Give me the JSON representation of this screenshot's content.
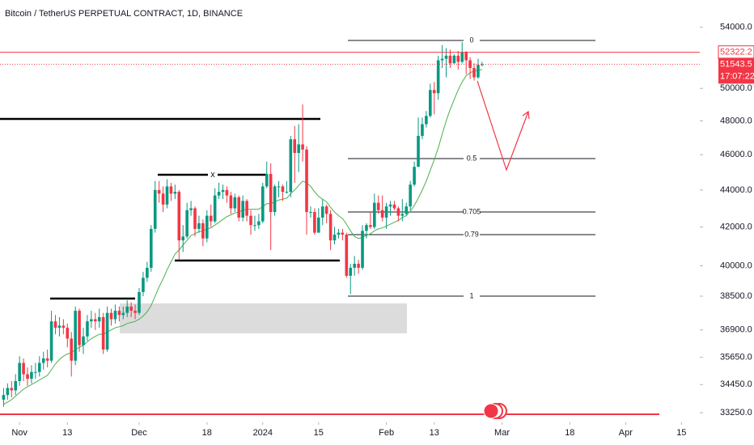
{
  "chart_data": {
    "type": "candlestick",
    "title": "Bitcoin / TetherUS PERPETUAL CONTRACT, 1D, BINANCE",
    "x": [
      0,
      1,
      2,
      3,
      4,
      5,
      6,
      7,
      8,
      9,
      10,
      11,
      12,
      13,
      14,
      15,
      16,
      17,
      18,
      19,
      20,
      21,
      22,
      23,
      24,
      25,
      26,
      27,
      28,
      29,
      30,
      31,
      32,
      33,
      34,
      35,
      36,
      37,
      38,
      39,
      40,
      41,
      42,
      43,
      44,
      45,
      46,
      47,
      48,
      49,
      50,
      51,
      52,
      53,
      54,
      55,
      56,
      57,
      58,
      59,
      60,
      61,
      62,
      63,
      64,
      65,
      66,
      67,
      68,
      69,
      70,
      71,
      72,
      73,
      74,
      75,
      76,
      77,
      78,
      79,
      80,
      81,
      82,
      83,
      84,
      85,
      86,
      87,
      88,
      89,
      90,
      91,
      92,
      93,
      94,
      95,
      96,
      97,
      98,
      99,
      100,
      101,
      102,
      103,
      104,
      105,
      106,
      107,
      108,
      109,
      110,
      111,
      112,
      113,
      114,
      115,
      116,
      117,
      118,
      119,
      120
    ],
    "open": [
      33800,
      34000,
      34300,
      34200,
      34600,
      35400,
      34900,
      34700,
      35000,
      35000,
      35400,
      35600,
      35500,
      37300,
      37000,
      37100,
      37000,
      36500,
      35500,
      37800,
      36200,
      36600,
      37300,
      37400,
      37300,
      37500,
      36000,
      37700,
      37400,
      37800,
      37600,
      37700,
      38000,
      37800,
      37700,
      38700,
      39400,
      39900,
      41900,
      44000,
      43800,
      43200,
      44200,
      43800,
      43900,
      41300,
      41500,
      42900,
      43000,
      41900,
      42200,
      41400,
      42600,
      42300,
      43700,
      43900,
      44000,
      43700,
      43000,
      43600,
      42500,
      43400,
      42600,
      42100,
      42100,
      42300,
      44200,
      44900,
      42800,
      44200,
      44200,
      43900,
      43900,
      46900,
      46100,
      46600,
      46300,
      42800,
      42800,
      41700,
      42500,
      43100,
      42700,
      41300,
      41600,
      41700,
      41600,
      39500,
      39900,
      40100,
      39900,
      41800,
      42100,
      42000,
      43300,
      42900,
      42500,
      43100,
      43200,
      43000,
      42600,
      42700,
      43100,
      44300,
      45300,
      47100,
      47800,
      48300,
      49900,
      49700,
      51800,
      51900,
      52100,
      51600,
      52100,
      51700,
      52300,
      51800,
      51300,
      50700,
      51500
    ],
    "high": [
      34300,
      34500,
      34600,
      34900,
      35700,
      35600,
      35200,
      35300,
      35400,
      35700,
      35900,
      36000,
      37800,
      37600,
      37500,
      37400,
      37200,
      36800,
      38000,
      37900,
      37000,
      37600,
      37800,
      37700,
      37900,
      37700,
      38000,
      37900,
      38100,
      38000,
      38000,
      38300,
      38200,
      38100,
      38900,
      39700,
      40200,
      42100,
      44500,
      44500,
      44200,
      44600,
      44400,
      44300,
      44000,
      42100,
      43300,
      43400,
      43100,
      42600,
      42400,
      42900,
      43200,
      44100,
      44400,
      44300,
      44200,
      43900,
      43800,
      43700,
      43700,
      43500,
      42900,
      42600,
      42700,
      44400,
      45600,
      45500,
      44300,
      44500,
      44300,
      44500,
      47100,
      47700,
      47800,
      49000,
      46500,
      43100,
      43000,
      43000,
      43500,
      43200,
      42900,
      42000,
      41900,
      41900,
      41700,
      40100,
      40500,
      40300,
      42100,
      42200,
      42800,
      43800,
      43700,
      43700,
      43300,
      43400,
      43400,
      43100,
      43500,
      43300,
      44500,
      45600,
      48200,
      48200,
      48600,
      50300,
      50400,
      52100,
      52800,
      52600,
      52500,
      52200,
      52400,
      53000,
      52400,
      52000,
      51600,
      51900,
      51700
    ],
    "low": [
      33500,
      33800,
      33900,
      34000,
      34400,
      34600,
      34400,
      34500,
      34700,
      34800,
      35100,
      35200,
      35400,
      36700,
      36600,
      36700,
      36100,
      34800,
      35300,
      35900,
      35800,
      36400,
      37000,
      36900,
      37000,
      35800,
      35900,
      37100,
      37200,
      37300,
      37400,
      37500,
      37500,
      37400,
      37600,
      38500,
      39200,
      39700,
      41700,
      43300,
      42800,
      43000,
      43400,
      43500,
      40300,
      40700,
      41400,
      42600,
      41500,
      41700,
      41000,
      41200,
      42000,
      42200,
      43500,
      43500,
      43300,
      42700,
      42800,
      42300,
      42300,
      42300,
      41600,
      41800,
      41900,
      42200,
      44100,
      40800,
      42600,
      43600,
      43400,
      43800,
      43600,
      44400,
      45000,
      45600,
      41600,
      42500,
      41600,
      41700,
      42100,
      42200,
      40800,
      41100,
      41400,
      41300,
      39400,
      38600,
      39500,
      39600,
      39800,
      41400,
      41900,
      41900,
      42700,
      42300,
      41900,
      42600,
      42900,
      42300,
      42300,
      42600,
      42900,
      44200,
      45300,
      46900,
      47600,
      48200,
      48400,
      49300,
      51300,
      50700,
      51300,
      51600,
      51200,
      51600,
      50900,
      50600,
      50500,
      50600,
      51400
    ],
    "close": [
      34000,
      34300,
      34200,
      34600,
      35400,
      34900,
      34700,
      35000,
      35000,
      35400,
      35600,
      35500,
      37300,
      37000,
      37100,
      37000,
      36500,
      35500,
      37800,
      36200,
      36600,
      37300,
      37400,
      37300,
      37500,
      36000,
      37700,
      37400,
      37800,
      37600,
      37700,
      38000,
      37800,
      37700,
      38700,
      39400,
      39900,
      41900,
      44000,
      43800,
      43200,
      44200,
      43800,
      43900,
      41300,
      41500,
      42900,
      43000,
      41900,
      42200,
      41400,
      42600,
      42300,
      43700,
      43900,
      44000,
      43700,
      43000,
      43600,
      42500,
      43400,
      42600,
      42100,
      42100,
      42300,
      44200,
      44900,
      42800,
      44200,
      44200,
      43900,
      43900,
      46900,
      46100,
      46600,
      46300,
      42800,
      42800,
      41700,
      42500,
      43100,
      42700,
      41300,
      41600,
      41700,
      41600,
      39500,
      39900,
      40100,
      39900,
      41800,
      42100,
      42000,
      43300,
      42900,
      42500,
      43100,
      43200,
      43000,
      42600,
      42700,
      43100,
      44300,
      45300,
      47100,
      47800,
      48300,
      49900,
      49700,
      51800,
      51900,
      52100,
      51600,
      52100,
      51700,
      52300,
      51800,
      51300,
      50700,
      51500,
      51543.5
    ],
    "up_color": "#089981",
    "down_color": "#f23645",
    "ma_values": [
      33600,
      33700,
      33800,
      33950,
      34100,
      34250,
      34350,
      34450,
      34550,
      34650,
      34750,
      34850,
      35100,
      35350,
      35550,
      35700,
      35800,
      35850,
      36000,
      36100,
      36200,
      36350,
      36500,
      36600,
      36700,
      36700,
      36800,
      36900,
      37000,
      37050,
      37100,
      37200,
      37250,
      37300,
      37400,
      37550,
      37750,
      38050,
      38500,
      38950,
      39350,
      39800,
      40200,
      40600,
      40800,
      41050,
      41300,
      41550,
      41650,
      41750,
      41800,
      41900,
      41950,
      42100,
      42250,
      42400,
      42550,
      42650,
      42750,
      42800,
      42900,
      42950,
      42950,
      42950,
      42950,
      43100,
      43250,
      43250,
      43350,
      43450,
      43500,
      43550,
      43800,
      44000,
      44250,
      44500,
      44400,
      44200,
      43900,
      43650,
      43500,
      43350,
      43050,
      42800,
      42600,
      42450,
      42150,
      41800,
      41500,
      41400,
      41450,
      41550,
      41650,
      41800,
      41900,
      41950,
      42050,
      42150,
      42250,
      42350,
      42500,
      42600,
      42850,
      43150,
      43550,
      44000,
      44500,
      45100,
      45700,
      46400,
      47200,
      48000,
      48700,
      49300,
      49900,
      50400,
      50800,
      51000,
      51100,
      51150,
      51200
    ],
    "ma_color": "#4caf50",
    "xlim": [
      -0.9,
      174.6
    ],
    "xticks": [
      {
        "value": 4,
        "label": "Nov"
      },
      {
        "value": 16,
        "label": "13"
      },
      {
        "value": 34,
        "label": "Dec"
      },
      {
        "value": 51,
        "label": "18"
      },
      {
        "value": 65,
        "label": "2024"
      },
      {
        "value": 79,
        "label": "15"
      },
      {
        "value": 96,
        "label": "Feb"
      },
      {
        "value": 108,
        "label": "13"
      },
      {
        "value": 125,
        "label": "Mar"
      },
      {
        "value": 142,
        "label": "18"
      },
      {
        "value": 156,
        "label": "Apr"
      },
      {
        "value": 170,
        "label": "15"
      }
    ],
    "ylim": [
      32850,
      55880
    ],
    "log_y": true,
    "yticks": [
      {
        "value": 54000,
        "label": "54000.0"
      },
      {
        "value": 50000,
        "label": "50000.0"
      },
      {
        "value": 48000,
        "label": "48000.0"
      },
      {
        "value": 46000,
        "label": "46000.0"
      },
      {
        "value": 44000,
        "label": "44000.0"
      },
      {
        "value": 42000,
        "label": "42000.0"
      },
      {
        "value": 40000,
        "label": "40000.0"
      },
      {
        "value": 38500,
        "label": "38500.0"
      },
      {
        "value": 36900,
        "label": "36900.0"
      },
      {
        "value": 35650,
        "label": "35650.0"
      },
      {
        "value": 34450,
        "label": "34450.0"
      },
      {
        "value": 33250,
        "label": "33250.0"
      }
    ],
    "price_line": 52322.2,
    "countdown": "17:07:22",
    "fib_labels": [
      "0",
      "0.5",
      "0.705",
      "0.79",
      "1"
    ],
    "marker_label": "x"
  }
}
